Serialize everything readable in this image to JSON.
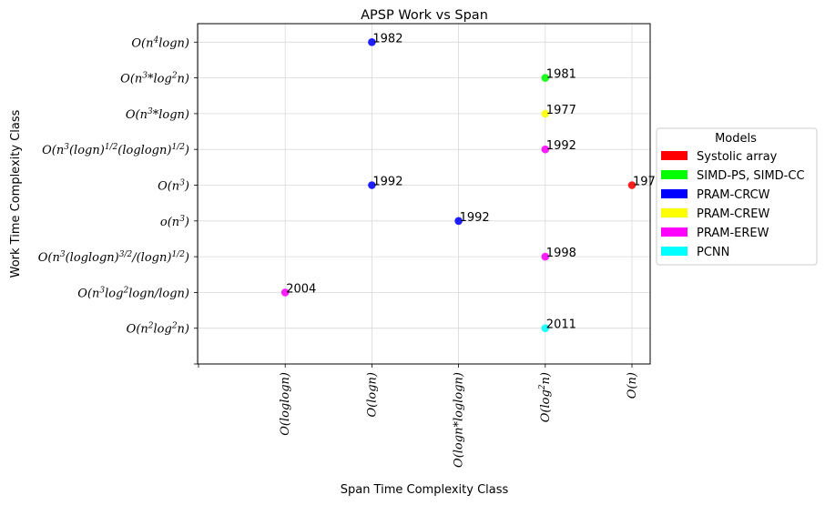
{
  "chart_data": {
    "type": "scatter",
    "title": "APSP Work vs Span",
    "xlabel": "Span Time Complexity Class",
    "ylabel": "Work Time Complexity Class",
    "x_categories": [
      "",
      "O(loglogn)",
      "O(logn)",
      "O(logn*loglogn)",
      "O(log²n)",
      "O(n)"
    ],
    "y_categories": [
      "",
      "O(n²log²n)",
      "O(n³log²logn/logn)",
      "O(n³(loglogn)^{3/2}/(logn)^{1/2})",
      "o(n³)",
      "O(n³)",
      "O(n³(logn)^{1/2}(loglogn)^{1/2})",
      "O(n³*logn)",
      "O(n³*log²n)",
      "O(n⁴logn)"
    ],
    "grid": true,
    "legend": {
      "title": "Models",
      "placement": "right",
      "entries": [
        {
          "label": "Systolic array",
          "color": "#ff0000"
        },
        {
          "label": "SIMD-PS, SIMD-CC",
          "color": "#00ff00"
        },
        {
          "label": "PRAM-CRCW",
          "color": "#0000ff"
        },
        {
          "label": "PRAM-CREW",
          "color": "#ffff00"
        },
        {
          "label": "PRAM-EREW",
          "color": "#ff00ff"
        },
        {
          "label": "PCNN",
          "color": "#00ffff"
        }
      ]
    },
    "points": [
      {
        "x": "O(logn)",
        "y": "O(n⁴logn)",
        "label": "1982",
        "model": "PRAM-CRCW"
      },
      {
        "x": "O(log²n)",
        "y": "O(n³*log²n)",
        "label": "1981",
        "model": "SIMD-PS, SIMD-CC"
      },
      {
        "x": "O(log²n)",
        "y": "O(n³*logn)",
        "label": "1977",
        "model": "PRAM-CREW"
      },
      {
        "x": "O(log²n)",
        "y": "O(n³(logn)^{1/2}(loglogn)^{1/2})",
        "label": "1992",
        "model": "PRAM-EREW"
      },
      {
        "x": "O(logn)",
        "y": "O(n³)",
        "label": "1992",
        "model": "PRAM-CRCW"
      },
      {
        "x": "O(n)",
        "y": "O(n³)",
        "label": "197",
        "model": "Systolic array"
      },
      {
        "x": "O(logn*loglogn)",
        "y": "o(n³)",
        "label": "1992",
        "model": "PRAM-CRCW"
      },
      {
        "x": "O(log²n)",
        "y": "O(n³(loglogn)^{3/2}/(logn)^{1/2})",
        "label": "1998",
        "model": "PRAM-EREW"
      },
      {
        "x": "O(loglogn)",
        "y": "O(n³log²logn/logn)",
        "label": "2004",
        "model": "PRAM-EREW"
      },
      {
        "x": "O(log²n)",
        "y": "O(n²log²n)",
        "label": "2011",
        "model": "PCNN"
      }
    ]
  }
}
